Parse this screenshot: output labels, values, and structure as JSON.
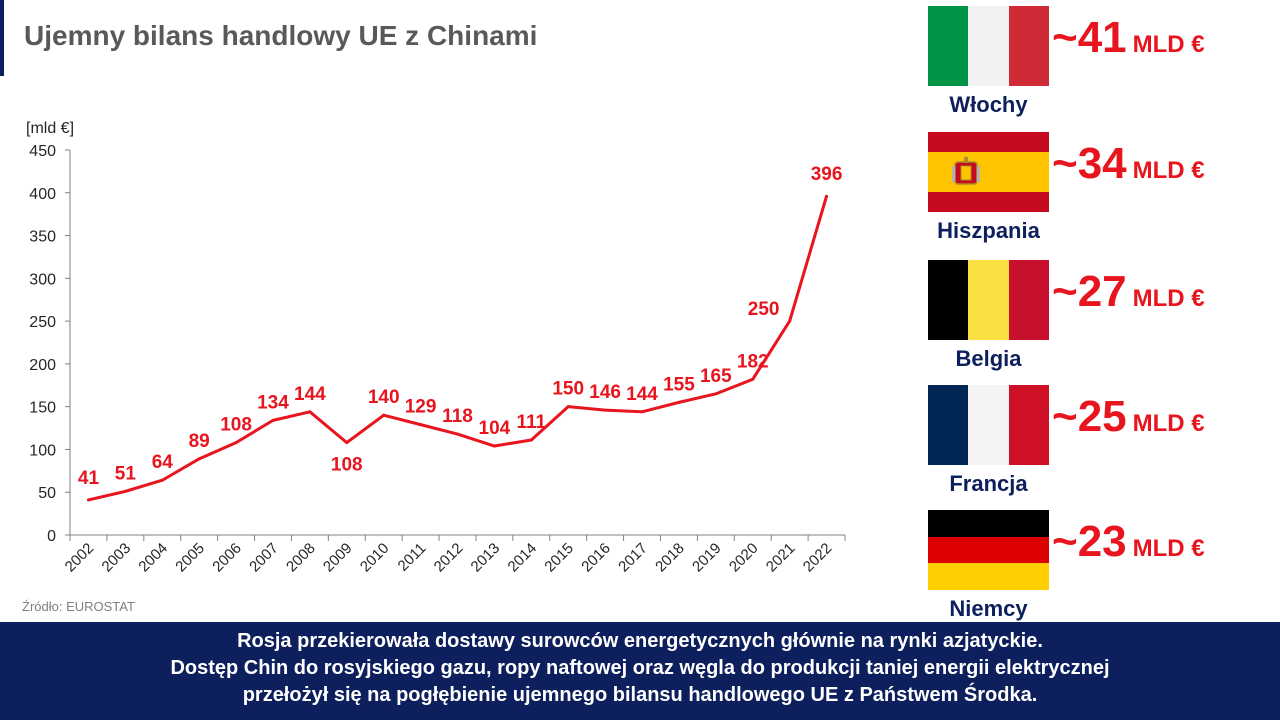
{
  "header": {
    "title": "Ujemny bilans handlowy UE z Chinami"
  },
  "source": "Źródło: EUROSTAT",
  "chart_data": {
    "type": "line",
    "ylabel": "[mld €]",
    "ylim": [
      0,
      450
    ],
    "yticks": [
      0,
      50,
      100,
      150,
      200,
      250,
      300,
      350,
      400,
      450
    ],
    "grid": false,
    "x": [
      "2002",
      "2003",
      "2004",
      "2005",
      "2006",
      "2007",
      "2008",
      "2009",
      "2010",
      "2011",
      "2012",
      "2013",
      "2014",
      "2015",
      "2016",
      "2017",
      "2018",
      "2019",
      "2020",
      "2021",
      "2022"
    ],
    "series": [
      {
        "values": [
          41,
          51,
          64,
          89,
          108,
          134,
          144,
          108,
          140,
          129,
          118,
          104,
          111,
          150,
          146,
          144,
          155,
          165,
          182,
          250,
          396
        ],
        "color": "#e8141e"
      }
    ]
  },
  "countries": [
    {
      "name": "Włochy",
      "amount": "~41",
      "unit": "MLD €",
      "flag": "italy-flag",
      "colors": [
        "#009246",
        "#f1f2f1",
        "#ce2b37"
      ]
    },
    {
      "name": "Hiszpania",
      "amount": "~34",
      "unit": "MLD €",
      "flag": "spain-flag",
      "colors": [
        "#c60b1e",
        "#ffc400",
        "#c60b1e"
      ]
    },
    {
      "name": "Belgia",
      "amount": "~27",
      "unit": "MLD €",
      "flag": "belgium-flag",
      "colors": [
        "#000000",
        "#fae042",
        "#c8102e"
      ]
    },
    {
      "name": "Francja",
      "amount": "~25",
      "unit": "MLD €",
      "flag": "france-flag",
      "colors": [
        "#002654",
        "#f4f4f4",
        "#ce1126"
      ]
    },
    {
      "name": "Niemcy",
      "amount": "~23",
      "unit": "MLD €",
      "flag": "germany-flag",
      "colors": [
        "#000000",
        "#dd0000",
        "#ffce00"
      ]
    }
  ],
  "footer": {
    "lines": [
      "Rosja przekierowała dostawy surowców energetycznych głównie na rynki azjatyckie.",
      "Dostęp Chin do rosyjskiego gazu, ropy naftowej oraz węgla do produkcji taniej energii elektrycznej",
      "przełożył się na pogłębienie ujemnego bilansu handlowego UE z Państwem Środka."
    ]
  },
  "colors": {
    "navy": "#0d1f5c",
    "accent_red": "#e8141e",
    "text_gray": "#595959"
  }
}
